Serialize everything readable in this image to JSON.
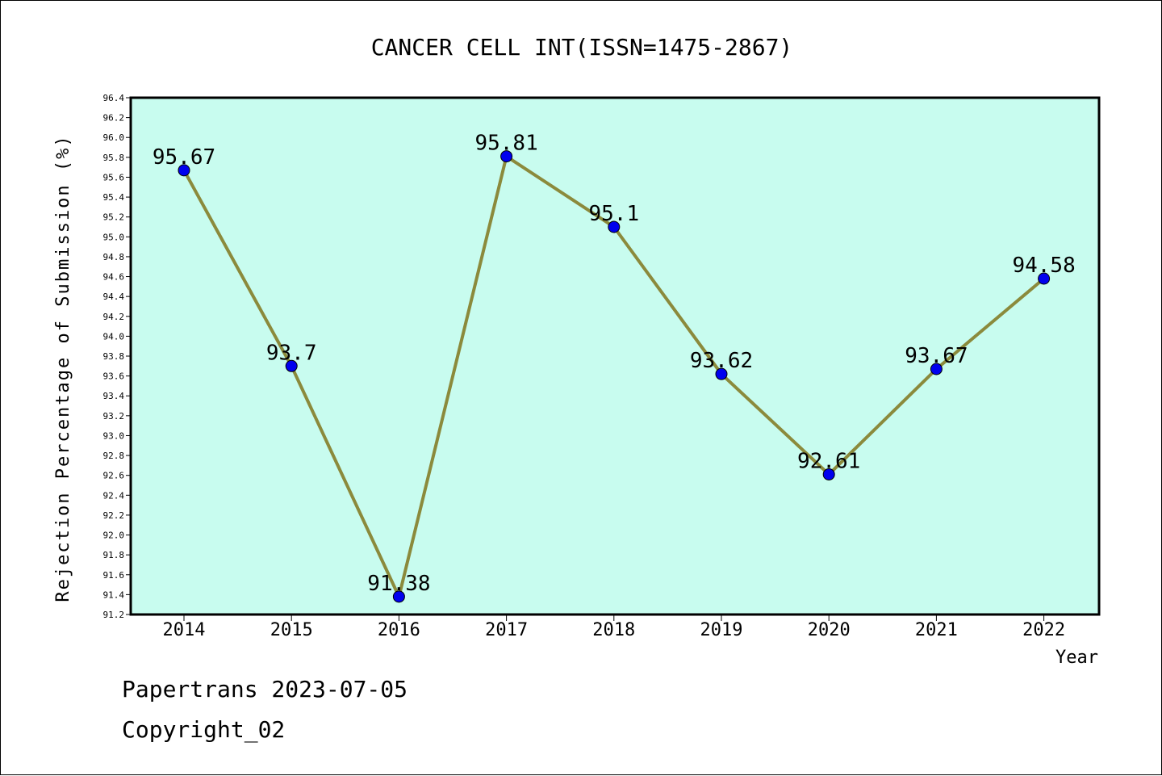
{
  "chart_data": {
    "type": "line",
    "title": "CANCER CELL INT(ISSN=1475-2867)",
    "xlabel": "Year",
    "ylabel": "Rejection Percentage of Submission (%)",
    "categories": [
      "2014",
      "2015",
      "2016",
      "2017",
      "2018",
      "2019",
      "2020",
      "2021",
      "2022"
    ],
    "values": [
      95.67,
      93.7,
      91.38,
      95.81,
      95.1,
      93.62,
      92.61,
      93.67,
      94.58
    ],
    "data_labels": [
      "95.67",
      "93.7",
      "91.38",
      "95.81",
      "95.1",
      "93.62",
      "92.61",
      "93.67",
      "94.58"
    ],
    "ylim": [
      91.2,
      96.4
    ],
    "ytick_step": 0.2,
    "grid": false,
    "colors": {
      "plot_background": "#c8fcef",
      "line": "#8b8a3c",
      "marker": "#0000ee"
    }
  },
  "footer": {
    "line1": "Papertrans 2023-07-05",
    "line2": "Copyright_02"
  }
}
